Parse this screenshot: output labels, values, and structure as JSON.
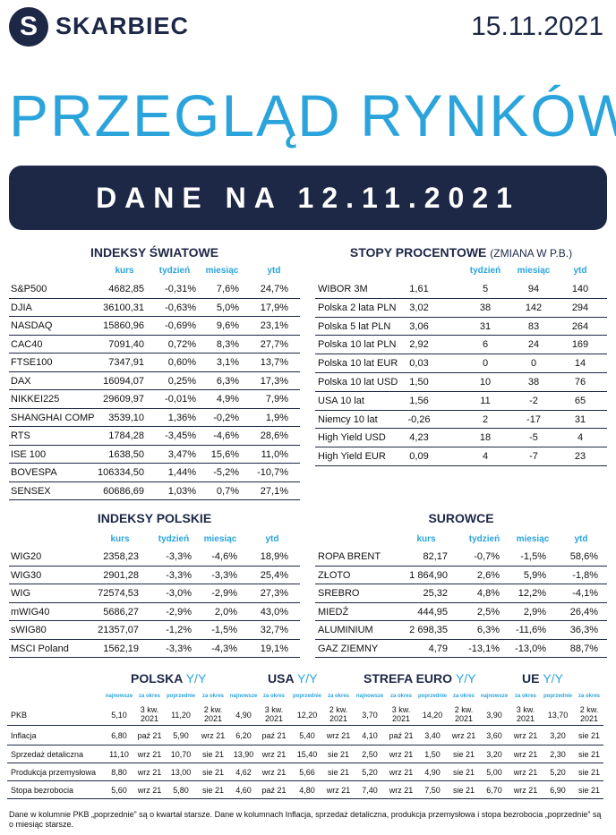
{
  "header": {
    "brand": "SKARBIEC",
    "logo_letter": "S",
    "date": "15.11.2021"
  },
  "title": "PRZEGLĄD RYNKÓW",
  "banner": "DANE NA 12.11.2021",
  "colors": {
    "navy": "#1d2847",
    "accent": "#2ba4dc"
  },
  "global_indices": {
    "title": "INDEKSY ŚWIATOWE",
    "columns": [
      "kurs",
      "tydzień",
      "miesiąc",
      "ytd"
    ],
    "rows": [
      [
        "S&P500",
        "4682,85",
        "-0,31%",
        "7,6%",
        "24,7%"
      ],
      [
        "DJIA",
        "36100,31",
        "-0,63%",
        "5,0%",
        "17,9%"
      ],
      [
        "NASDAQ",
        "15860,96",
        "-0,69%",
        "9,6%",
        "23,1%"
      ],
      [
        "CAC40",
        "7091,40",
        "0,72%",
        "8,3%",
        "27,7%"
      ],
      [
        "FTSE100",
        "7347,91",
        "0,60%",
        "3,1%",
        "13,7%"
      ],
      [
        "DAX",
        "16094,07",
        "0,25%",
        "6,3%",
        "17,3%"
      ],
      [
        "NIKKEI225",
        "29609,97",
        "-0,01%",
        "4,9%",
        "7,9%"
      ],
      [
        "SHANGHAI COMP",
        "3539,10",
        "1,36%",
        "-0,2%",
        "1,9%"
      ],
      [
        "RTS",
        "1784,28",
        "-3,45%",
        "-4,6%",
        "28,6%"
      ],
      [
        "ISE 100",
        "1638,50",
        "3,47%",
        "15,6%",
        "11,0%"
      ],
      [
        "BOVESPA",
        "106334,50",
        "1,44%",
        "-5,2%",
        "-10,7%"
      ],
      [
        "SENSEX",
        "60686,69",
        "1,03%",
        "0,7%",
        "27,1%"
      ]
    ]
  },
  "rates": {
    "title": "STOPY PROCENTOWE",
    "subtitle": "(ZMIANA W P.B.)",
    "columns": [
      "tydzień",
      "miesiąc",
      "ytd"
    ],
    "rows": [
      [
        "WIBOR 3M",
        "1,61",
        "5",
        "94",
        "140"
      ],
      [
        "Polska 2 lata PLN",
        "3,02",
        "38",
        "142",
        "294"
      ],
      [
        "Polska 5 lat PLN",
        "3,06",
        "31",
        "83",
        "264"
      ],
      [
        "Polska 10 lat PLN",
        "2,92",
        "6",
        "24",
        "169"
      ],
      [
        "Polska 10 lat EUR",
        "0,03",
        "0",
        "0",
        "14"
      ],
      [
        "Polska 10 lat USD",
        "1,50",
        "10",
        "38",
        "76"
      ],
      [
        "USA 10 lat",
        "1,56",
        "11",
        "-2",
        "65"
      ],
      [
        "Niemcy 10 lat",
        "-0,26",
        "2",
        "-17",
        "31"
      ],
      [
        "High Yield USD",
        "4,23",
        "18",
        "-5",
        "4"
      ],
      [
        "High Yield EUR",
        "0,09",
        "4",
        "-7",
        "23"
      ]
    ]
  },
  "polish_indices": {
    "title": "INDEKSY POLSKIE",
    "columns": [
      "kurs",
      "tydzień",
      "miesiąc",
      "ytd"
    ],
    "rows": [
      [
        "WIG20",
        "2358,23",
        "-3,3%",
        "-4,6%",
        "18,9%"
      ],
      [
        "WIG30",
        "2901,28",
        "-3,3%",
        "-3,3%",
        "25,4%"
      ],
      [
        "WIG",
        "72574,53",
        "-3,0%",
        "-2,9%",
        "27,3%"
      ],
      [
        "mWIG40",
        "5686,27",
        "-2,9%",
        "2,0%",
        "43,0%"
      ],
      [
        "sWIG80",
        "21357,07",
        "-1,2%",
        "-1,5%",
        "32,7%"
      ],
      [
        "MSCI Poland",
        "1562,19",
        "-3,3%",
        "-4,3%",
        "19,1%"
      ]
    ]
  },
  "commodities": {
    "title": "SUROWCE",
    "columns": [
      "kurs",
      "tydzień",
      "miesiąc",
      "ytd"
    ],
    "rows": [
      [
        "ROPA BRENT",
        "82,17",
        "-0,7%",
        "-1,5%",
        "58,6%"
      ],
      [
        "ZŁOTO",
        "1 864,90",
        "2,6%",
        "5,9%",
        "-1,8%"
      ],
      [
        "SREBRO",
        "25,32",
        "4,8%",
        "12,2%",
        "-4,1%"
      ],
      [
        "MIEDŹ",
        "444,95",
        "2,5%",
        "2,9%",
        "26,4%"
      ],
      [
        "ALUMINIUM",
        "2 698,35",
        "6,3%",
        "-11,6%",
        "36,3%"
      ],
      [
        "GAZ ZIEMNY",
        "4,79",
        "-13,1%",
        "-13,0%",
        "88,7%"
      ]
    ]
  },
  "macro": {
    "yy": "Y/Y",
    "groups": [
      "POLSKA",
      "USA",
      "STREFA EURO",
      "UE"
    ],
    "subcolumns": [
      "najnowsze",
      "za okres",
      "poprzednie",
      "za okres"
    ],
    "rows": [
      {
        "label": "PKB",
        "values": [
          "5,10",
          "3 kw. 2021",
          "11,20",
          "2 kw. 2021",
          "4,90",
          "3 kw. 2021",
          "12,20",
          "2 kw. 2021",
          "3,70",
          "3 kw. 2021",
          "14,20",
          "2 kw. 2021",
          "3,90",
          "3 kw. 2021",
          "13,70",
          "2 kw. 2021"
        ]
      },
      {
        "label": "Inflacja",
        "values": [
          "6,80",
          "paź 21",
          "5,90",
          "wrz 21",
          "6,20",
          "paź 21",
          "5,40",
          "wrz 21",
          "4,10",
          "paź 21",
          "3,40",
          "wrz 21",
          "3,60",
          "wrz 21",
          "3,20",
          "sie 21"
        ]
      },
      {
        "label": "Sprzedaż detaliczna",
        "values": [
          "11,10",
          "wrz 21",
          "10,70",
          "sie 21",
          "13,90",
          "wrz 21",
          "15,40",
          "sie 21",
          "2,50",
          "wrz 21",
          "1,50",
          "sie 21",
          "3,20",
          "wrz 21",
          "2,30",
          "sie 21"
        ]
      },
      {
        "label": "Produkcja przemysłowa",
        "values": [
          "8,80",
          "wrz 21",
          "13,00",
          "sie 21",
          "4,62",
          "wrz 21",
          "5,66",
          "sie 21",
          "5,20",
          "wrz 21",
          "4,90",
          "sie 21",
          "5,00",
          "wrz 21",
          "5,20",
          "sie 21"
        ]
      },
      {
        "label": "Stopa bezrobocia",
        "values": [
          "5,60",
          "wrz 21",
          "5,80",
          "sie 21",
          "4,60",
          "paź 21",
          "4,80",
          "wrz 21",
          "7,40",
          "wrz 21",
          "7,50",
          "sie 21",
          "6,70",
          "wrz 21",
          "6,90",
          "sie 21"
        ]
      }
    ]
  },
  "footnote": "Dane w kolumnie PKB „poprzednie” są o kwartał starsze.  Dane w kolumnach Inflacja, sprzedaż detaliczna, produkcja przemysłowa i stopa bezrobocia „poprzednie” są o miesiąc starsze."
}
